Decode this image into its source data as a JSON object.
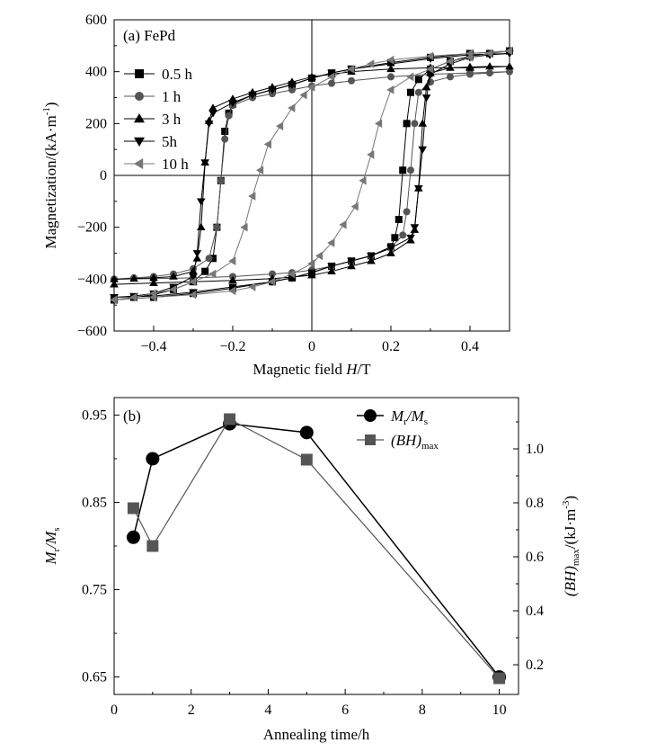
{
  "chart_data": [
    {
      "type": "line",
      "panel_label": "(a) FePd",
      "xlabel": {
        "text": "Magnetic field ",
        "italic": "H",
        "suffix": "/T"
      },
      "ylabel": {
        "text": "Magnetization/(kA·m",
        "sup": "-1",
        "suffix": ")"
      },
      "xlim": [
        -0.5,
        0.5
      ],
      "ylim": [
        -600,
        600
      ],
      "xticks": [
        -0.4,
        -0.2,
        0,
        0.2,
        0.4
      ],
      "xtick_labels": [
        "−0.4",
        "−0.2",
        "0",
        "0.2",
        "0.4"
      ],
      "yticks": [
        -600,
        -400,
        -200,
        0,
        200,
        400,
        600
      ],
      "ytick_labels": [
        "−600",
        "−400",
        "−200",
        "0",
        "200",
        "400",
        "600"
      ],
      "zero_lines": true,
      "legend_position": "top-left",
      "series": [
        {
          "name": "0.5 h",
          "marker": "square",
          "color": "#000000",
          "upper": [
            [
              -0.5,
              -480
            ],
            [
              -0.45,
              -470
            ],
            [
              -0.4,
              -460
            ],
            [
              -0.35,
              -440
            ],
            [
              -0.3,
              -410
            ],
            [
              -0.27,
              -370
            ],
            [
              -0.25,
              -320
            ],
            [
              -0.24,
              -200
            ],
            [
              -0.23,
              -20
            ],
            [
              -0.22,
              170
            ],
            [
              -0.21,
              240
            ],
            [
              -0.2,
              275
            ],
            [
              -0.15,
              310
            ],
            [
              -0.1,
              330
            ],
            [
              -0.05,
              350
            ],
            [
              0,
              375
            ],
            [
              0.05,
              395
            ],
            [
              0.1,
              410
            ],
            [
              0.2,
              435
            ],
            [
              0.3,
              455
            ],
            [
              0.4,
              470
            ],
            [
              0.5,
              480
            ]
          ],
          "lower": [
            [
              0.5,
              480
            ],
            [
              0.45,
              470
            ],
            [
              0.4,
              460
            ],
            [
              0.35,
              440
            ],
            [
              0.3,
              410
            ],
            [
              0.27,
              370
            ],
            [
              0.25,
              320
            ],
            [
              0.24,
              200
            ],
            [
              0.23,
              20
            ],
            [
              0.22,
              -170
            ],
            [
              0.21,
              -240
            ],
            [
              0.2,
              -275
            ],
            [
              0.15,
              -310
            ],
            [
              0.1,
              -330
            ],
            [
              0.05,
              -350
            ],
            [
              0,
              -375
            ],
            [
              -0.05,
              -395
            ],
            [
              -0.1,
              -410
            ],
            [
              -0.2,
              -435
            ],
            [
              -0.3,
              -455
            ],
            [
              -0.4,
              -470
            ],
            [
              -0.5,
              -480
            ]
          ]
        },
        {
          "name": "1 h",
          "marker": "circle",
          "color": "#555555",
          "upper": [
            [
              -0.5,
              -400
            ],
            [
              -0.45,
              -395
            ],
            [
              -0.4,
              -390
            ],
            [
              -0.35,
              -380
            ],
            [
              -0.3,
              -360
            ],
            [
              -0.26,
              -320
            ],
            [
              -0.24,
              -200
            ],
            [
              -0.23,
              -20
            ],
            [
              -0.22,
              140
            ],
            [
              -0.21,
              230
            ],
            [
              -0.2,
              270
            ],
            [
              -0.15,
              300
            ],
            [
              -0.1,
              315
            ],
            [
              -0.05,
              330
            ],
            [
              0,
              345
            ],
            [
              0.05,
              355
            ],
            [
              0.1,
              365
            ],
            [
              0.2,
              380
            ],
            [
              0.3,
              390
            ],
            [
              0.4,
              395
            ],
            [
              0.5,
              400
            ]
          ],
          "lower": [
            [
              0.5,
              400
            ],
            [
              0.45,
              395
            ],
            [
              0.4,
              390
            ],
            [
              0.35,
              380
            ],
            [
              0.3,
              360
            ],
            [
              0.27,
              320
            ],
            [
              0.26,
              200
            ],
            [
              0.25,
              20
            ],
            [
              0.24,
              -140
            ],
            [
              0.23,
              -230
            ],
            [
              0.2,
              -280
            ],
            [
              0.15,
              -310
            ],
            [
              0.1,
              -330
            ],
            [
              0.05,
              -350
            ],
            [
              0,
              -365
            ],
            [
              -0.05,
              -375
            ],
            [
              -0.1,
              -380
            ],
            [
              -0.2,
              -390
            ],
            [
              -0.3,
              -395
            ],
            [
              -0.4,
              -398
            ],
            [
              -0.5,
              -400
            ]
          ]
        },
        {
          "name": "3 h",
          "marker": "triangle-up",
          "color": "#000000",
          "upper": [
            [
              -0.5,
              -400
            ],
            [
              -0.45,
              -398
            ],
            [
              -0.4,
              -395
            ],
            [
              -0.35,
              -390
            ],
            [
              -0.3,
              -370
            ],
            [
              -0.29,
              -320
            ],
            [
              -0.28,
              -200
            ],
            [
              -0.27,
              50
            ],
            [
              -0.26,
              210
            ],
            [
              -0.25,
              260
            ],
            [
              -0.2,
              295
            ],
            [
              -0.15,
              320
            ],
            [
              -0.1,
              340
            ],
            [
              -0.05,
              360
            ],
            [
              0,
              380
            ],
            [
              0.05,
              390
            ],
            [
              0.1,
              400
            ],
            [
              0.2,
              410
            ],
            [
              0.3,
              415
            ],
            [
              0.4,
              415
            ],
            [
              0.5,
              420
            ]
          ],
          "lower": [
            [
              0.5,
              420
            ],
            [
              0.45,
              420
            ],
            [
              0.4,
              418
            ],
            [
              0.35,
              415
            ],
            [
              0.3,
              395
            ],
            [
              0.29,
              340
            ],
            [
              0.28,
              200
            ],
            [
              0.27,
              -50
            ],
            [
              0.26,
              -210
            ],
            [
              0.25,
              -250
            ],
            [
              0.2,
              -300
            ],
            [
              0.15,
              -330
            ],
            [
              0.1,
              -350
            ],
            [
              0.05,
              -370
            ],
            [
              0,
              -385
            ],
            [
              -0.05,
              -392
            ],
            [
              -0.1,
              -398
            ],
            [
              -0.2,
              -405
            ],
            [
              -0.3,
              -410
            ],
            [
              -0.4,
              -415
            ],
            [
              -0.5,
              -420
            ]
          ]
        },
        {
          "name": "5h",
          "marker": "triangle-down",
          "color": "#000000",
          "upper": [
            [
              -0.5,
              -470
            ],
            [
              -0.45,
              -465
            ],
            [
              -0.4,
              -455
            ],
            [
              -0.35,
              -430
            ],
            [
              -0.3,
              -390
            ],
            [
              -0.29,
              -300
            ],
            [
              -0.28,
              -100
            ],
            [
              -0.27,
              50
            ],
            [
              -0.26,
              200
            ],
            [
              -0.25,
              240
            ],
            [
              -0.2,
              280
            ],
            [
              -0.15,
              310
            ],
            [
              -0.1,
              330
            ],
            [
              -0.05,
              350
            ],
            [
              0,
              375
            ],
            [
              0.05,
              395
            ],
            [
              0.1,
              410
            ],
            [
              0.2,
              430
            ],
            [
              0.3,
              450
            ],
            [
              0.4,
              465
            ],
            [
              0.5,
              470
            ]
          ],
          "lower": [
            [
              0.5,
              470
            ],
            [
              0.45,
              465
            ],
            [
              0.4,
              455
            ],
            [
              0.35,
              430
            ],
            [
              0.3,
              390
            ],
            [
              0.29,
              300
            ],
            [
              0.28,
              100
            ],
            [
              0.27,
              -50
            ],
            [
              0.26,
              -200
            ],
            [
              0.25,
              -240
            ],
            [
              0.2,
              -280
            ],
            [
              0.15,
              -310
            ],
            [
              0.1,
              -330
            ],
            [
              0.05,
              -350
            ],
            [
              0,
              -375
            ],
            [
              -0.05,
              -395
            ],
            [
              -0.1,
              -410
            ],
            [
              -0.2,
              -430
            ],
            [
              -0.3,
              -450
            ],
            [
              -0.4,
              -465
            ],
            [
              -0.5,
              -470
            ]
          ]
        },
        {
          "name": "10 h",
          "marker": "triangle-left",
          "color": "#777777",
          "upper": [
            [
              -0.5,
              -480
            ],
            [
              -0.45,
              -470
            ],
            [
              -0.4,
              -455
            ],
            [
              -0.35,
              -440
            ],
            [
              -0.3,
              -410
            ],
            [
              -0.25,
              -380
            ],
            [
              -0.2,
              -330
            ],
            [
              -0.17,
              -200
            ],
            [
              -0.15,
              -80
            ],
            [
              -0.13,
              20
            ],
            [
              -0.11,
              120
            ],
            [
              -0.08,
              190
            ],
            [
              -0.05,
              260
            ],
            [
              -0.02,
              310
            ],
            [
              0,
              340
            ],
            [
              0.05,
              380
            ],
            [
              0.1,
              410
            ],
            [
              0.15,
              430
            ],
            [
              0.2,
              445
            ],
            [
              0.3,
              460
            ],
            [
              0.4,
              470
            ],
            [
              0.5,
              480
            ]
          ],
          "lower": [
            [
              0.5,
              480
            ],
            [
              0.45,
              470
            ],
            [
              0.4,
              455
            ],
            [
              0.35,
              440
            ],
            [
              0.3,
              410
            ],
            [
              0.25,
              380
            ],
            [
              0.2,
              330
            ],
            [
              0.17,
              200
            ],
            [
              0.15,
              80
            ],
            [
              0.13,
              -20
            ],
            [
              0.11,
              -120
            ],
            [
              0.08,
              -190
            ],
            [
              0.05,
              -260
            ],
            [
              0.02,
              -310
            ],
            [
              0,
              -340
            ],
            [
              -0.05,
              -380
            ],
            [
              -0.1,
              -410
            ],
            [
              -0.15,
              -430
            ],
            [
              -0.2,
              -445
            ],
            [
              -0.3,
              -460
            ],
            [
              -0.4,
              -470
            ],
            [
              -0.5,
              -480
            ]
          ]
        }
      ]
    },
    {
      "type": "line",
      "panel_label": "(b)",
      "xlabel": "Annealing time/h",
      "ylabel_left": {
        "main": "M",
        "sub1": "r",
        "mid": "/M",
        "sub2": "s"
      },
      "ylabel_right": {
        "main": "(BH)",
        "sub": "max",
        "suffix": "/(kJ·m",
        "sup": "-3",
        "end": ")"
      },
      "xlim": [
        0,
        10.5
      ],
      "ylim_left": [
        0.63,
        0.97
      ],
      "ylim_right": [
        0.09,
        1.19
      ],
      "xticks": [
        0,
        2,
        4,
        6,
        8,
        10
      ],
      "xtick_labels": [
        "0",
        "2",
        "4",
        "6",
        "8",
        "10"
      ],
      "yticks_left": [
        0.65,
        0.75,
        0.85,
        0.95
      ],
      "ytick_labels_left": [
        "0.65",
        "0.75",
        "0.85",
        "0.95"
      ],
      "yticks_right": [
        0.2,
        0.4,
        0.6,
        0.8,
        1.0
      ],
      "ytick_labels_right": [
        "0.2",
        "0.4",
        "0.6",
        "0.8",
        "1.0"
      ],
      "legend_position": "top-right",
      "x": [
        0.5,
        1,
        3,
        5,
        10
      ],
      "series": [
        {
          "legend": {
            "main": "M",
            "sub1": "r",
            "mid": "/M",
            "sub2": "s"
          },
          "axis": "left",
          "marker": "circle",
          "color": "#000000",
          "values": [
            0.81,
            0.9,
            0.94,
            0.93,
            0.65
          ]
        },
        {
          "legend": {
            "main": "(BH)",
            "sub": "max"
          },
          "axis": "right",
          "marker": "square",
          "color": "#555555",
          "values": [
            0.78,
            0.64,
            1.11,
            0.96,
            0.15
          ]
        }
      ]
    }
  ]
}
